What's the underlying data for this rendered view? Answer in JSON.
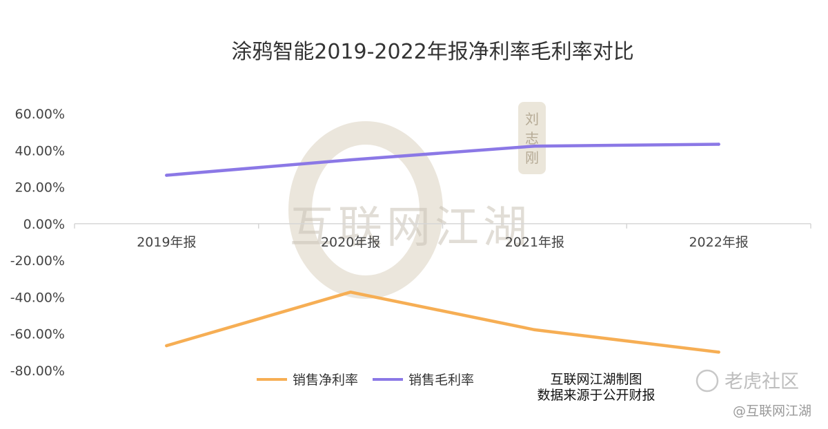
{
  "chart_data": {
    "type": "line",
    "title": "涂鸦智能2019-2022年报净利率毛利率对比",
    "categories": [
      "2019年报",
      "2020年报",
      "2021年报",
      "2022年报"
    ],
    "series": [
      {
        "name": "销售净利率",
        "color": "#f6ae54",
        "values": [
          -66.5,
          -37.3,
          -57.8,
          -70.0
        ]
      },
      {
        "name": "销售毛利率",
        "color": "#8b78e6",
        "values": [
          26.4,
          34.8,
          42.3,
          43.3
        ]
      }
    ],
    "yticks": [
      "60.00%",
      "40.00%",
      "20.00%",
      "0.00%",
      "-20.00%",
      "-40.00%",
      "-60.00%",
      "-80.00%"
    ],
    "ylim": [
      -80,
      60
    ],
    "grid": false,
    "legend_position": "bottom"
  },
  "credit": {
    "line1": "互联网江湖制图",
    "line2": "数据来源于公开财报"
  },
  "watermark": {
    "text": "互联网江湖",
    "seal": "刘志刚",
    "forum": "老虎社区",
    "handle": "@互联网江湖"
  }
}
